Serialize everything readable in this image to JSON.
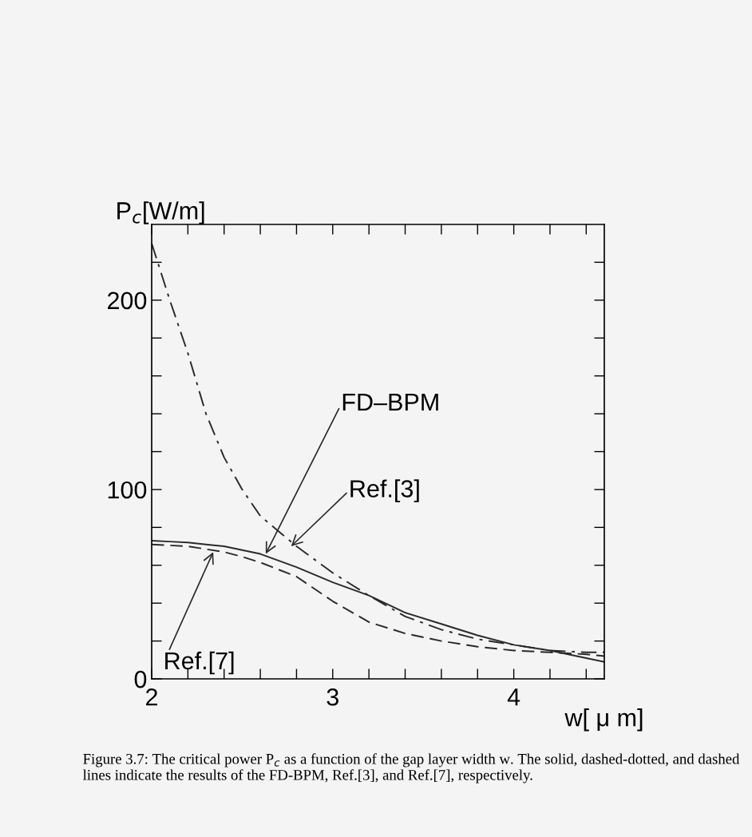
{
  "chart_data": {
    "type": "line",
    "xlabel": "w[ μ m]",
    "ylabel": "P$_{c}$[W/m]",
    "x": [
      2.0,
      2.1,
      2.2,
      2.3,
      2.4,
      2.5,
      2.6,
      2.8,
      3.0,
      3.2,
      3.4,
      3.6,
      3.8,
      4.0,
      4.2,
      4.4,
      4.5
    ],
    "series": [
      {
        "color": "#2a2a2a",
        "line_style": "solid",
        "values": [
          73,
          72.5,
          72,
          71,
          70,
          68,
          66,
          59,
          51,
          44,
          35,
          29,
          23,
          18,
          15,
          11,
          9
        ]
      },
      {
        "color": "#2a2a2a",
        "line_style": "dashdot",
        "values": [
          230,
          200,
          172,
          140,
          117,
          100,
          86,
          70,
          56,
          44,
          33,
          26,
          21,
          18,
          15,
          14,
          14
        ]
      },
      {
        "color": "#2a2a2a",
        "line_style": "dashed",
        "values": [
          71,
          70.5,
          70,
          68.5,
          67,
          64.5,
          61.5,
          54,
          41,
          30,
          24,
          20,
          17,
          15,
          14,
          13,
          12
        ]
      }
    ],
    "xlim": [
      2,
      4.5
    ],
    "ylim": [
      0,
      240
    ],
    "xticks": [
      2,
      {
        "value": 2.2,
        "label": null
      },
      {
        "value": 2.4,
        "label": null
      },
      {
        "value": 2.6,
        "label": null
      },
      {
        "value": 2.8,
        "label": null
      },
      3,
      {
        "value": 3.2,
        "label": null
      },
      {
        "value": 3.4,
        "label": null
      },
      {
        "value": 3.6,
        "label": null
      },
      {
        "value": 3.8,
        "label": null
      },
      4,
      {
        "value": 4.2,
        "label": null
      },
      {
        "value": 4.4,
        "label": null
      }
    ],
    "yticks": [
      0,
      {
        "value": 20,
        "label": null
      },
      {
        "value": 40,
        "label": null
      },
      {
        "value": 60,
        "label": null
      },
      {
        "value": 80,
        "label": null
      },
      100,
      {
        "value": 120,
        "label": null
      },
      {
        "value": 140,
        "label": null
      },
      {
        "value": 160,
        "label": null
      },
      {
        "value": 180,
        "label": null
      },
      200,
      {
        "value": 220,
        "label": null
      }
    ],
    "grid": false,
    "legend": false,
    "annotations": [
      {
        "text": "FD–BPM",
        "x": 2.63,
        "y": 66
      },
      {
        "text": "Ref.[3]",
        "x": 2.77,
        "y": 70
      },
      {
        "text": "Ref.[7]",
        "x": 2.34,
        "y": 67
      },
      "Figure 3.7: The critical power P$_{c}$ as a function of the gap layer width w. The solid, dashed-dotted, and dashed lines indicate the results of the FD-BPM, Ref.[3], and Ref.[7], respectively."
    ]
  }
}
